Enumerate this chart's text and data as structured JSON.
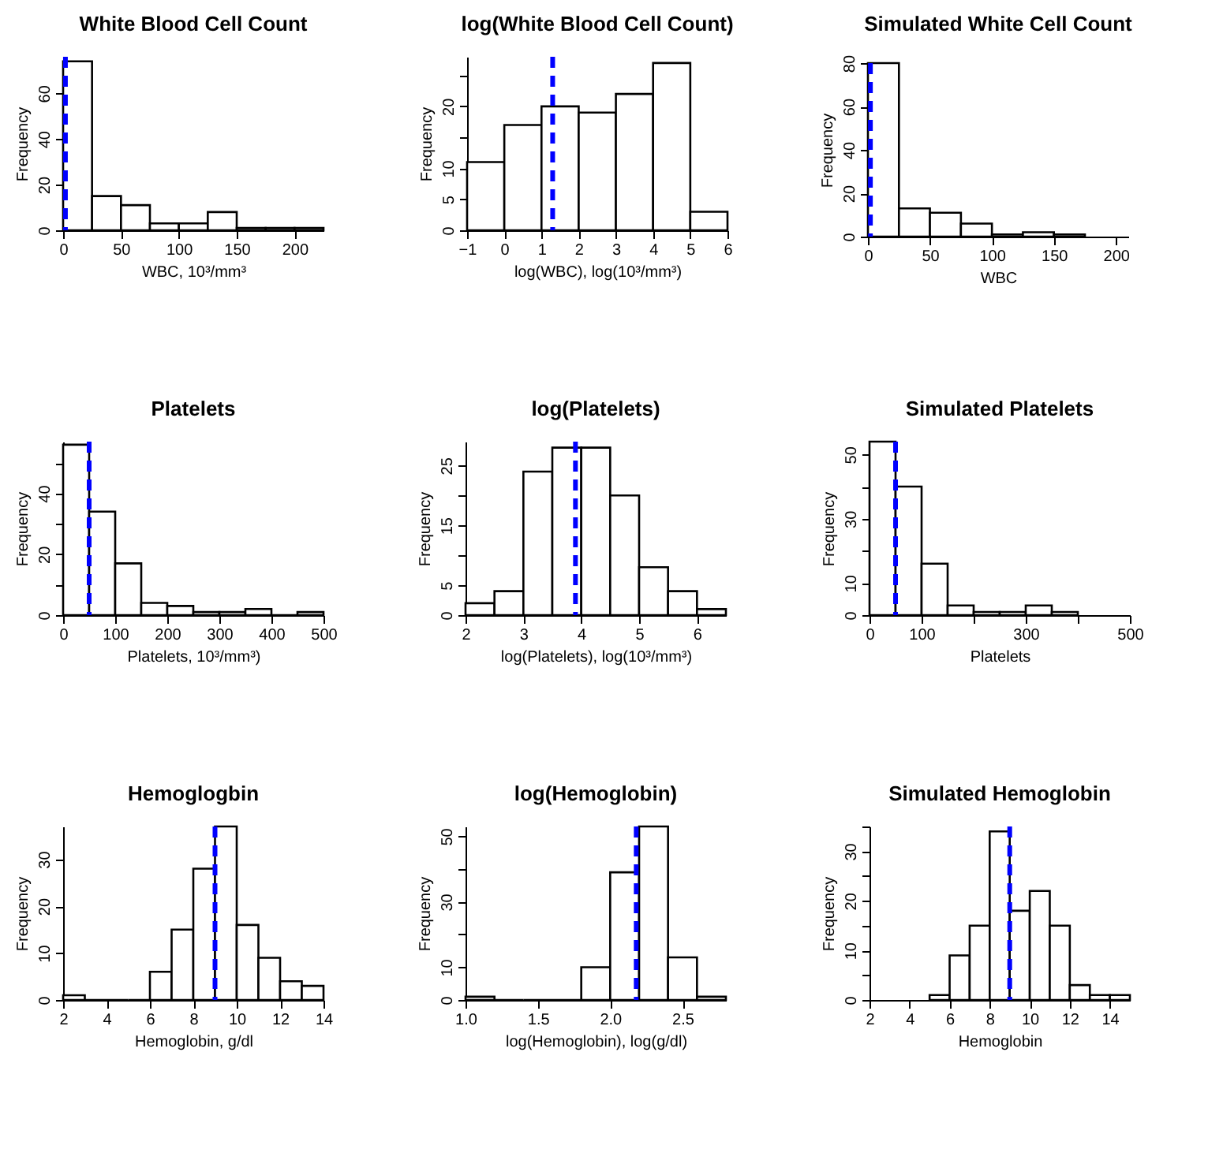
{
  "chart_data": [
    {
      "type": "histogram",
      "title": "White Blood Cell Count",
      "xlabel": "WBC, 10³/mm³",
      "ylabel": "Frequency",
      "bins": [
        0,
        25,
        50,
        75,
        100,
        125,
        150,
        175,
        200,
        225
      ],
      "values": [
        74,
        15,
        11,
        3,
        3,
        8,
        1,
        1,
        1
      ],
      "xlim": [
        0,
        225
      ],
      "ylim": [
        0,
        76
      ],
      "xticks": [
        0,
        50,
        100,
        150,
        200
      ],
      "yticks": [
        0,
        20,
        40,
        60
      ],
      "ref_lines": [
        {
          "axis": "x",
          "value": 2,
          "color": "#0000ff",
          "line_style": "dashed"
        }
      ]
    },
    {
      "type": "histogram",
      "title": "log(White Blood Cell Count)",
      "xlabel": "log(WBC), log(10³/mm³)",
      "ylabel": "Frequency",
      "bins": [
        -1,
        0,
        1,
        2,
        3,
        4,
        5,
        6
      ],
      "values": [
        11,
        17,
        20,
        19,
        22,
        27,
        3
      ],
      "xlim": [
        -1,
        6
      ],
      "ylim": [
        0,
        28
      ],
      "xticks": [
        -1,
        0,
        1,
        2,
        3,
        4,
        5,
        6
      ],
      "yticks": [
        0,
        5,
        10,
        {
          "value": 15,
          "label": null
        },
        20,
        {
          "value": 25,
          "label": null
        }
      ],
      "ref_lines": [
        {
          "axis": "x",
          "value": 1.3,
          "color": "#0000ff",
          "line_style": "dashed"
        }
      ]
    },
    {
      "type": "histogram",
      "title": "Simulated White Cell Count",
      "xlabel": "WBC",
      "ylabel": "Frequency",
      "bins": [
        0,
        25,
        50,
        75,
        100,
        125,
        150,
        175
      ],
      "values": [
        80,
        13,
        11,
        6,
        1,
        2,
        1
      ],
      "xlim": [
        0,
        210
      ],
      "ylim": [
        0,
        80
      ],
      "xticks": [
        0,
        50,
        100,
        150,
        200
      ],
      "yticks": [
        0,
        20,
        40,
        60,
        80
      ],
      "ref_lines": [
        {
          "axis": "x",
          "value": 2,
          "color": "#0000ff",
          "line_style": "dashed"
        }
      ]
    },
    {
      "type": "histogram",
      "title": "Platelets",
      "xlabel": "Platelets, 10³/mm³)",
      "ylabel": "Frequency",
      "bins": [
        0,
        50,
        100,
        150,
        200,
        250,
        300,
        350,
        400,
        450,
        500
      ],
      "values": [
        56,
        34,
        17,
        4,
        3,
        1,
        1,
        2,
        0,
        1
      ],
      "xlim": [
        0,
        500
      ],
      "ylim": [
        0,
        57
      ],
      "xticks": [
        0,
        100,
        200,
        300,
        400,
        500
      ],
      "yticks": [
        0,
        {
          "value": 10,
          "label": null
        },
        20,
        {
          "value": 30,
          "label": null
        },
        40,
        {
          "value": 50,
          "label": null
        }
      ],
      "ref_lines": [
        {
          "axis": "x",
          "value": 50,
          "color": "#0000ff",
          "line_style": "dashed"
        }
      ]
    },
    {
      "type": "histogram",
      "title": "log(Platelets)",
      "xlabel": "log(Platelets), log(10³/mm³)",
      "ylabel": "Frequency",
      "bins": [
        2,
        2.5,
        3,
        3.5,
        4,
        4.5,
        5,
        5.5,
        6,
        6.5
      ],
      "values": [
        2,
        4,
        24,
        28,
        28,
        20,
        8,
        4,
        1
      ],
      "xlim": [
        2,
        6.5
      ],
      "ylim": [
        0,
        29
      ],
      "xticks": [
        2,
        3,
        4,
        5,
        6
      ],
      "yticks": [
        0,
        5,
        {
          "value": 10,
          "label": null
        },
        15,
        {
          "value": 20,
          "label": null
        },
        25
      ],
      "ref_lines": [
        {
          "axis": "x",
          "value": 3.9,
          "color": "#0000ff",
          "line_style": "dashed"
        }
      ]
    },
    {
      "type": "histogram",
      "title": "Simulated Platelets",
      "xlabel": "Platelets",
      "ylabel": "Frequency",
      "bins": [
        0,
        50,
        100,
        150,
        200,
        250,
        300,
        350,
        400
      ],
      "values": [
        54,
        40,
        16,
        3,
        1,
        1,
        3,
        1
      ],
      "xlim": [
        0,
        500
      ],
      "ylim": [
        0,
        54
      ],
      "xticks": [
        0,
        100,
        {
          "value": 200,
          "label": null
        },
        300,
        {
          "value": 400,
          "label": null
        },
        500
      ],
      "yticks": [
        0,
        10,
        {
          "value": 20,
          "label": null
        },
        30,
        {
          "value": 40,
          "label": null
        },
        50
      ],
      "ref_lines": [
        {
          "axis": "x",
          "value": 50,
          "color": "#0000ff",
          "line_style": "dashed"
        }
      ]
    },
    {
      "type": "histogram",
      "title": "Hemoglogbin",
      "xlabel": "Hemoglobin, g/dl",
      "ylabel": "Frequency",
      "bins": [
        2,
        3,
        4,
        5,
        6,
        7,
        8,
        9,
        10,
        11,
        12,
        13,
        14
      ],
      "values": [
        1,
        0,
        0,
        0,
        6,
        15,
        28,
        37,
        16,
        9,
        4,
        3
      ],
      "xlim": [
        2,
        14
      ],
      "ylim": [
        0,
        37
      ],
      "xticks": [
        2,
        4,
        6,
        8,
        10,
        12,
        14
      ],
      "yticks": [
        0,
        10,
        20,
        30
      ],
      "ref_lines": [
        {
          "axis": "x",
          "value": 9,
          "color": "#0000ff",
          "line_style": "dashed"
        }
      ]
    },
    {
      "type": "histogram",
      "title": "log(Hemoglobin)",
      "xlabel": "log(Hemoglobin), log(g/dl)",
      "ylabel": "Frequency",
      "bins": [
        1.0,
        1.2,
        1.4,
        1.6,
        1.8,
        2.0,
        2.2,
        2.4,
        2.6,
        2.8
      ],
      "values": [
        1,
        0,
        0,
        0,
        10,
        39,
        53,
        13,
        1
      ],
      "xlim": [
        1.0,
        2.8
      ],
      "ylim": [
        0,
        53
      ],
      "xticks": [
        {
          "value": 1,
          "label": "1.0"
        },
        {
          "value": 1.5,
          "label": "1.5"
        },
        {
          "value": 2,
          "label": "2.0"
        },
        {
          "value": 2.5,
          "label": "2.5"
        }
      ],
      "yticks": [
        0,
        10,
        {
          "value": 20,
          "label": null
        },
        30,
        {
          "value": 40,
          "label": null
        },
        50
      ],
      "ref_lines": [
        {
          "axis": "x",
          "value": 2.18,
          "color": "#0000ff",
          "line_style": "dashed"
        }
      ]
    },
    {
      "type": "histogram",
      "title": "Simulated Hemoglobin",
      "xlabel": "Hemoglobin",
      "ylabel": "Frequency",
      "bins": [
        5,
        6,
        7,
        8,
        9,
        10,
        11,
        12,
        13,
        14,
        15
      ],
      "values": [
        1,
        9,
        15,
        34,
        18,
        22,
        15,
        3,
        1,
        1
      ],
      "xlim": [
        2,
        15
      ],
      "ylim": [
        0,
        35
      ],
      "xticks": [
        2,
        4,
        6,
        8,
        10,
        12,
        14
      ],
      "yticks": [
        0,
        {
          "value": 5,
          "label": null
        },
        10,
        {
          "value": 15,
          "label": null
        },
        20,
        {
          "value": 25,
          "label": null
        },
        30,
        {
          "value": 35,
          "label": null
        }
      ],
      "ref_lines": [
        {
          "axis": "x",
          "value": 9,
          "color": "#0000ff",
          "line_style": "dashed"
        }
      ]
    }
  ]
}
